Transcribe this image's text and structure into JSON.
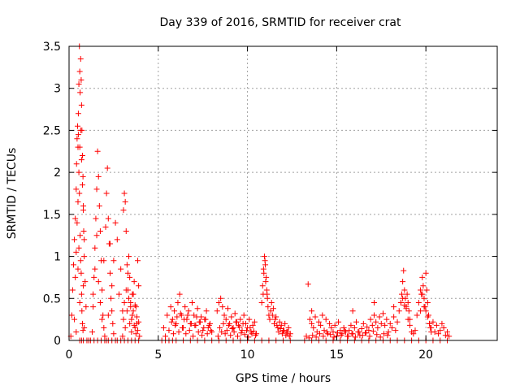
{
  "chart_data": {
    "type": "scatter",
    "title": "Day 339 of 2016, SRMTID for receiver crat",
    "xlabel": "GPS time / hours",
    "ylabel": "SRMTID / TECUs",
    "xlim": [
      0,
      24
    ],
    "ylim": [
      0,
      3.5
    ],
    "xticks": [
      0,
      5,
      10,
      15,
      20
    ],
    "yticks": [
      0,
      0.5,
      1,
      1.5,
      2,
      2.5,
      3,
      3.5
    ],
    "xtick_labels": [
      "0",
      "5",
      "10",
      "15",
      "20"
    ],
    "ytick_labels": [
      "0",
      "0.5",
      "1",
      "1.5",
      "2",
      "2.5",
      "3",
      "3.5"
    ],
    "grid": true,
    "marker": "+",
    "series": [
      {
        "name": "SRMTID",
        "color": "#ff0000",
        "x": [
          0.1,
          0.15,
          0.2,
          0.25,
          0.3,
          0.35,
          0.4,
          0.42,
          0.45,
          0.48,
          0.5,
          0.52,
          0.55,
          0.58,
          0.6,
          0.62,
          0.65,
          0.68,
          0.7,
          0.72,
          0.75,
          0.78,
          0.8,
          0.82,
          0.85,
          0.9,
          0.95,
          0.3,
          0.35,
          0.4,
          0.45,
          0.5,
          0.55,
          0.6,
          0.65,
          0.7,
          0.75,
          0.8,
          0.85,
          0.4,
          0.5,
          0.55,
          0.6,
          0.65,
          0.7,
          0.75,
          0.8,
          0.85,
          0.52,
          0.58,
          0.62,
          0.68,
          0.72,
          0.78,
          1.3,
          1.35,
          1.4,
          1.45,
          1.5,
          1.55,
          1.6,
          1.65,
          1.7,
          1.75,
          1.8,
          1.85,
          1.9,
          1.95,
          2.0,
          1.35,
          1.45,
          1.55,
          1.65,
          1.75,
          1.85,
          1.95,
          2.05,
          2.1,
          2.15,
          2.2,
          2.25,
          2.3,
          2.35,
          2.4,
          2.45,
          2.5,
          2.2,
          2.3,
          2.4,
          2.5,
          2.6,
          2.7,
          2.8,
          2.9,
          3.0,
          3.05,
          3.1,
          3.15,
          3.2,
          3.25,
          3.3,
          3.35,
          3.4,
          3.45,
          3.5,
          3.55,
          3.6,
          3.65,
          3.7,
          3.75,
          3.8,
          3.85,
          3.9,
          3.0,
          3.05,
          3.1,
          3.15,
          3.2,
          3.25,
          3.3,
          3.35,
          3.4,
          3.45,
          3.5,
          3.55,
          3.6,
          3.65,
          3.7,
          3.75,
          3.8,
          3.85,
          3.9,
          3.95,
          5.3,
          5.5,
          5.7,
          5.8,
          5.9,
          6.0,
          6.1,
          6.2,
          6.3,
          6.4,
          6.5,
          6.6,
          6.7,
          6.8,
          6.9,
          7.0,
          7.1,
          7.2,
          7.3,
          7.4,
          7.5,
          7.6,
          7.7,
          7.8,
          7.9,
          8.0,
          5.4,
          5.6,
          5.75,
          5.85,
          5.95,
          6.05,
          6.15,
          6.25,
          6.35,
          6.45,
          6.55,
          6.65,
          6.75,
          6.85,
          6.95,
          7.05,
          7.15,
          7.25,
          7.35,
          7.45,
          7.55,
          7.65,
          7.75,
          7.85,
          7.95,
          8.3,
          8.4,
          8.5,
          8.6,
          8.7,
          8.8,
          8.9,
          9.0,
          9.1,
          9.2,
          9.3,
          9.4,
          9.5,
          9.6,
          9.7,
          9.8,
          9.9,
          10.0,
          10.1,
          10.2,
          10.3,
          10.4,
          10.5,
          8.35,
          8.45,
          8.55,
          8.65,
          8.75,
          8.85,
          8.95,
          9.05,
          9.15,
          9.25,
          9.35,
          9.45,
          9.55,
          9.65,
          9.75,
          9.85,
          9.95,
          10.05,
          10.15,
          10.25,
          10.35,
          10.45,
          10.8,
          10.85,
          10.9,
          10.95,
          11.0,
          11.05,
          11.1,
          11.15,
          11.2,
          11.25,
          11.3,
          11.35,
          11.4,
          11.5,
          11.6,
          11.7,
          11.8,
          11.9,
          12.0,
          12.1,
          12.2,
          12.3,
          12.4,
          10.88,
          10.92,
          10.98,
          11.02,
          11.08,
          11.12,
          11.45,
          11.55,
          11.65,
          11.75,
          11.85,
          11.95,
          12.05,
          12.15,
          12.25,
          12.35,
          13.3,
          13.4,
          13.5,
          13.6,
          13.7,
          13.8,
          13.9,
          14.0,
          14.1,
          14.2,
          14.3,
          14.4,
          14.5,
          14.6,
          14.7,
          14.8,
          14.9,
          15.0,
          15.1,
          15.2,
          15.3,
          15.4,
          15.5,
          15.6,
          15.7,
          15.8,
          15.9,
          16.0,
          16.1,
          16.2,
          16.3,
          16.4,
          16.5,
          16.6,
          16.7,
          16.8,
          16.9,
          17.0,
          17.1,
          17.2,
          17.3,
          17.4,
          17.5,
          17.6,
          17.7,
          17.8,
          17.9,
          18.0,
          18.1,
          18.2,
          18.3,
          18.4,
          18.5,
          18.6,
          18.7,
          18.8,
          18.9,
          19.0,
          19.1,
          19.2,
          19.3,
          19.4,
          19.5,
          19.6,
          19.7,
          19.8,
          19.9,
          20.0,
          20.1,
          20.2,
          20.3,
          20.4,
          20.5,
          20.6,
          20.7,
          20.8,
          20.9,
          21.0,
          21.1,
          21.2,
          21.3,
          13.45,
          13.65,
          13.85,
          14.05,
          14.25,
          14.45,
          14.65,
          14.85,
          15.05,
          15.25,
          15.45,
          15.65,
          15.85,
          16.05,
          16.25,
          16.45,
          16.65,
          16.85,
          17.05,
          17.25,
          17.45,
          17.65,
          17.85,
          18.6,
          18.65,
          18.7,
          18.75,
          18.8,
          18.85,
          18.9,
          18.95,
          19.0,
          19.05,
          19.1,
          19.7,
          19.75,
          19.8,
          19.85,
          19.9,
          19.95,
          20.0,
          20.05,
          20.1,
          20.15,
          20.2,
          20.25,
          20.3,
          13.6,
          15.9,
          17.1,
          18.2,
          0.6,
          0.7,
          0.8,
          1.0,
          1.1,
          1.2,
          1.4,
          1.6,
          1.8,
          2.0,
          2.1,
          2.2,
          2.4,
          2.6,
          2.7,
          2.9,
          3.1,
          3.3,
          3.5,
          3.7,
          3.9,
          5.2,
          5.4,
          5.6,
          5.8,
          6.0,
          6.4,
          6.8,
          7.2,
          7.6,
          8.0,
          8.4,
          8.8,
          9.2,
          9.6,
          10.0,
          10.4,
          10.8,
          11.2,
          11.6,
          12.0,
          12.4,
          13.2,
          13.6,
          14.0,
          14.4,
          14.8,
          15.2,
          15.6,
          16.0,
          16.4,
          16.8,
          17.2,
          17.6,
          18.0,
          18.4,
          18.8,
          19.2,
          19.6,
          20.0,
          20.4,
          20.8,
          21.2
        ],
        "y": [
          0.05,
          0.3,
          0.6,
          0.9,
          1.2,
          1.45,
          1.8,
          2.1,
          2.4,
          2.55,
          2.3,
          2.7,
          3.05,
          3.5,
          3.2,
          2.95,
          3.35,
          3.1,
          2.8,
          2.5,
          2.2,
          1.95,
          1.6,
          1.3,
          1.0,
          0.7,
          0.4,
          0.25,
          0.75,
          1.05,
          1.4,
          1.65,
          2.0,
          2.3,
          2.5,
          2.15,
          1.85,
          1.55,
          1.2,
          0.1,
          0.85,
          1.1,
          0.45,
          0.95,
          0.55,
          0.2,
          0.65,
          0.15,
          2.45,
          1.75,
          1.25,
          0.8,
          0.35,
          0.12,
          0.1,
          0.4,
          0.75,
          1.1,
          1.45,
          1.8,
          2.25,
          1.95,
          1.6,
          1.3,
          0.95,
          0.6,
          0.3,
          0.15,
          0.05,
          0.55,
          0.85,
          1.25,
          0.7,
          0.45,
          0.25,
          0.95,
          1.35,
          1.75,
          2.05,
          1.45,
          1.15,
          0.8,
          0.5,
          0.35,
          0.2,
          0.08,
          0.3,
          1.15,
          0.65,
          0.95,
          1.4,
          1.2,
          0.55,
          0.85,
          0.35,
          1.55,
          1.75,
          1.65,
          1.3,
          0.9,
          0.6,
          1.0,
          0.75,
          0.45,
          0.25,
          0.55,
          0.35,
          0.7,
          0.15,
          0.4,
          0.2,
          0.95,
          0.65,
          0.05,
          0.25,
          0.45,
          0.15,
          0.6,
          0.35,
          0.8,
          0.5,
          0.2,
          0.4,
          0.1,
          0.3,
          0.55,
          0.18,
          0.42,
          0.08,
          0.28,
          0.12,
          0.22,
          0.05,
          0.15,
          0.3,
          0.4,
          0.25,
          0.35,
          0.2,
          0.45,
          0.55,
          0.3,
          0.15,
          0.4,
          0.25,
          0.35,
          0.2,
          0.45,
          0.3,
          0.18,
          0.38,
          0.22,
          0.28,
          0.12,
          0.25,
          0.35,
          0.15,
          0.2,
          0.1,
          0.05,
          0.12,
          0.22,
          0.08,
          0.18,
          0.28,
          0.1,
          0.32,
          0.15,
          0.25,
          0.08,
          0.3,
          0.12,
          0.2,
          0.05,
          0.18,
          0.28,
          0.1,
          0.22,
          0.06,
          0.15,
          0.25,
          0.08,
          0.18,
          0.12,
          0.35,
          0.45,
          0.5,
          0.4,
          0.3,
          0.25,
          0.38,
          0.2,
          0.28,
          0.15,
          0.32,
          0.22,
          0.18,
          0.25,
          0.12,
          0.3,
          0.2,
          0.15,
          0.25,
          0.1,
          0.18,
          0.22,
          0.08,
          0.05,
          0.15,
          0.1,
          0.2,
          0.08,
          0.12,
          0.18,
          0.06,
          0.14,
          0.1,
          0.22,
          0.05,
          0.16,
          0.09,
          0.2,
          0.07,
          0.12,
          0.04,
          0.15,
          0.08,
          0.11,
          0.06,
          0.45,
          0.65,
          0.85,
          1.0,
          0.9,
          0.75,
          0.55,
          0.4,
          0.3,
          0.25,
          0.35,
          0.45,
          0.3,
          0.2,
          0.28,
          0.15,
          0.22,
          0.18,
          0.12,
          0.2,
          0.1,
          0.15,
          0.08,
          0.55,
          0.8,
          0.95,
          0.7,
          0.6,
          0.5,
          0.38,
          0.25,
          0.18,
          0.1,
          0.14,
          0.08,
          0.12,
          0.06,
          0.1,
          0.05,
          0.05,
          0.67,
          0.25,
          0.35,
          0.15,
          0.28,
          0.1,
          0.22,
          0.18,
          0.3,
          0.12,
          0.25,
          0.08,
          0.2,
          0.15,
          0.1,
          0.18,
          0.05,
          0.22,
          0.12,
          0.08,
          0.15,
          0.1,
          0.05,
          0.12,
          0.18,
          0.08,
          0.15,
          0.22,
          0.1,
          0.06,
          0.14,
          0.2,
          0.09,
          0.16,
          0.12,
          0.25,
          0.18,
          0.3,
          0.22,
          0.15,
          0.28,
          0.2,
          0.32,
          0.18,
          0.25,
          0.1,
          0.2,
          0.15,
          0.28,
          0.12,
          0.22,
          0.35,
          0.45,
          0.5,
          0.42,
          0.38,
          0.25,
          0.18,
          0.1,
          0.08,
          0.12,
          0.3,
          0.45,
          0.6,
          0.55,
          0.4,
          0.35,
          0.28,
          0.2,
          0.15,
          0.22,
          0.1,
          0.18,
          0.08,
          0.12,
          0.2,
          0.15,
          0.06,
          0.1,
          0.05,
          0.03,
          0.06,
          0.04,
          0.08,
          0.05,
          0.1,
          0.07,
          0.04,
          0.09,
          0.06,
          0.12,
          0.05,
          0.08,
          0.04,
          0.1,
          0.06,
          0.09,
          0.05,
          0.11,
          0.07,
          0.04,
          0.08,
          0.06,
          0.45,
          0.55,
          0.7,
          0.83,
          0.6,
          0.5,
          0.4,
          0.55,
          0.45,
          0.35,
          0.25,
          0.35,
          0.55,
          0.75,
          0.65,
          0.5,
          0.4,
          0.8,
          0.6,
          0.45,
          0.3,
          0.2,
          0.15,
          0.1,
          0.2,
          0.35,
          0.45,
          0.4,
          0.0,
          0.0,
          0.0,
          0.0,
          0.0,
          0.0,
          0.0,
          0.0,
          0.0,
          0.0,
          0.0,
          0.0,
          0.0,
          0.0,
          0.0,
          0.0,
          0.0,
          0.0,
          0.0,
          0.0,
          0.0,
          0.0,
          0.0,
          0.0,
          0.0,
          0.0,
          0.0,
          0.0,
          0.0,
          0.0,
          0.0,
          0.0,
          0.0,
          0.0,
          0.0,
          0.0,
          0.0,
          0.0,
          0.0,
          0.0,
          0.0,
          0.0,
          0.0,
          0.0,
          0.0,
          0.0,
          0.0,
          0.0,
          0.0,
          0.0,
          0.0,
          0.0,
          0.0,
          0.0,
          0.0,
          0.0,
          0.0,
          0.0,
          0.0,
          0.0,
          0.0,
          0.0,
          0.0
        ]
      }
    ]
  }
}
